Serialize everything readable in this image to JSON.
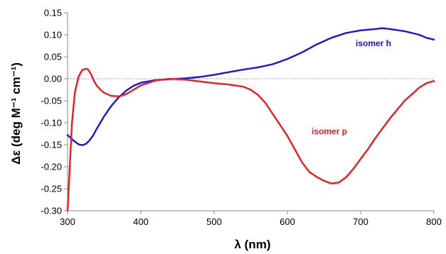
{
  "chart_data": {
    "type": "line",
    "xlabel": "λ (nm)",
    "ylabel": "Δε (deg M⁻¹ cm⁻¹)",
    "xlim": [
      300,
      800
    ],
    "ylim": [
      -0.3,
      0.15
    ],
    "x_ticks": [
      "300",
      "400",
      "500",
      "600",
      "700",
      "800"
    ],
    "y_ticks": [
      "0.15",
      "0.10",
      "0.05",
      "0.00",
      "-0.05",
      "-0.10",
      "-0.15",
      "-0.20",
      "-0.25",
      "-0.30"
    ],
    "zero_line": true,
    "grid": false,
    "legend": "none",
    "series": [
      {
        "name": "isomer h",
        "color": "#1414e6",
        "x": [
          300,
          305,
          310,
          315,
          320,
          325,
          330,
          335,
          340,
          350,
          360,
          370,
          380,
          390,
          400,
          420,
          440,
          460,
          480,
          500,
          520,
          540,
          560,
          580,
          600,
          620,
          640,
          660,
          680,
          700,
          720,
          730,
          740,
          760,
          780,
          790,
          800
        ],
        "y": [
          -0.128,
          -0.136,
          -0.143,
          -0.149,
          -0.151,
          -0.148,
          -0.14,
          -0.128,
          -0.113,
          -0.085,
          -0.061,
          -0.042,
          -0.027,
          -0.016,
          -0.009,
          -0.003,
          -0.001,
          0.001,
          0.004,
          0.009,
          0.015,
          0.021,
          0.026,
          0.033,
          0.045,
          0.06,
          0.078,
          0.093,
          0.104,
          0.11,
          0.113,
          0.115,
          0.113,
          0.108,
          0.1,
          0.093,
          0.089
        ]
      },
      {
        "name": "isomer p",
        "color": "#ee1c1c",
        "x": [
          300,
          303,
          306,
          310,
          315,
          320,
          325,
          328,
          332,
          336,
          340,
          345,
          350,
          360,
          370,
          380,
          390,
          400,
          420,
          440,
          460,
          480,
          500,
          520,
          540,
          550,
          560,
          570,
          580,
          590,
          600,
          610,
          620,
          630,
          640,
          650,
          660,
          670,
          680,
          690,
          700,
          710,
          720,
          740,
          760,
          780,
          790,
          800
        ],
        "y": [
          -0.3,
          -0.2,
          -0.1,
          -0.03,
          0.005,
          0.02,
          0.023,
          0.021,
          0.01,
          -0.005,
          -0.016,
          -0.025,
          -0.032,
          -0.039,
          -0.04,
          -0.035,
          -0.025,
          -0.015,
          -0.004,
          0.0,
          -0.002,
          -0.006,
          -0.01,
          -0.013,
          -0.018,
          -0.025,
          -0.037,
          -0.055,
          -0.08,
          -0.105,
          -0.13,
          -0.16,
          -0.19,
          -0.212,
          -0.223,
          -0.232,
          -0.238,
          -0.236,
          -0.224,
          -0.205,
          -0.182,
          -0.16,
          -0.135,
          -0.09,
          -0.05,
          -0.02,
          -0.01,
          -0.005
        ]
      }
    ]
  }
}
